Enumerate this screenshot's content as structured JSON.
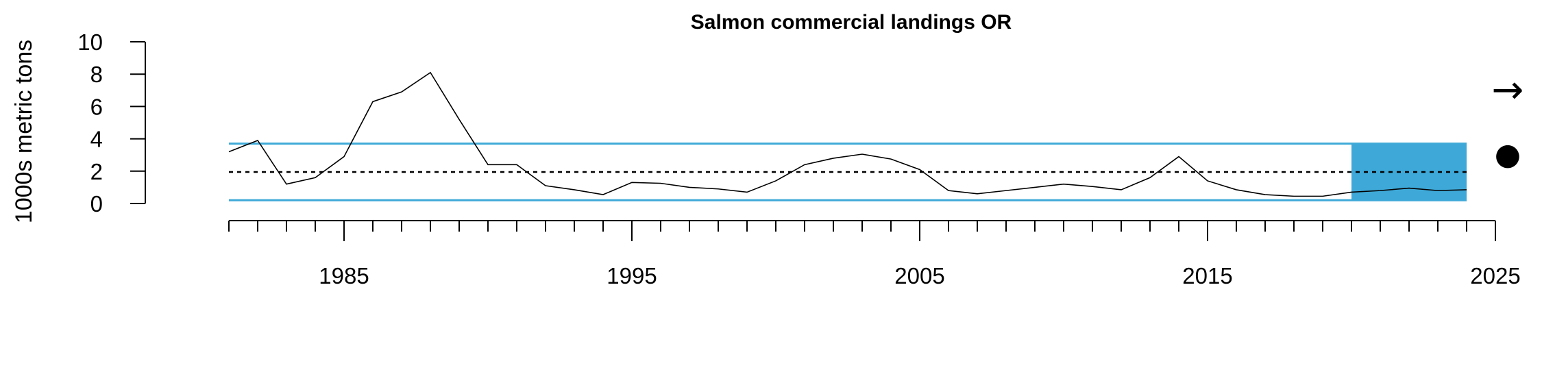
{
  "chart_data": {
    "type": "line",
    "title": "Salmon commercial landings OR",
    "ylabel": "1000s metric tons",
    "xlabel": "",
    "xlim": [
      1980,
      2025
    ],
    "ylim": [
      0,
      10
    ],
    "x_tick_labels": [
      "1985",
      "1995",
      "2005",
      "2015",
      "2025"
    ],
    "x_tick_values": [
      1985,
      1995,
      2005,
      2015,
      2025
    ],
    "y_tick_labels": [
      "0",
      "2",
      "4",
      "6",
      "8",
      "10"
    ],
    "y_tick_values": [
      0,
      2,
      4,
      6,
      8,
      10
    ],
    "series": [
      {
        "name": "landings",
        "x": [
          1981,
          1982,
          1983,
          1984,
          1985,
          1986,
          1987,
          1988,
          1989,
          1990,
          1991,
          1992,
          1993,
          1994,
          1995,
          1996,
          1997,
          1998,
          1999,
          2000,
          2001,
          2002,
          2003,
          2004,
          2005,
          2006,
          2007,
          2008,
          2009,
          2010,
          2011,
          2012,
          2013,
          2014,
          2015,
          2016,
          2017,
          2018,
          2019,
          2020,
          2021,
          2022,
          2023,
          2024
        ],
        "values": [
          3.2,
          3.9,
          1.2,
          1.6,
          2.9,
          6.3,
          6.9,
          8.1,
          5.2,
          2.4,
          2.4,
          1.1,
          0.85,
          0.55,
          1.3,
          1.25,
          1.0,
          0.9,
          0.7,
          1.4,
          2.4,
          2.8,
          3.05,
          2.75,
          2.1,
          0.8,
          0.6,
          0.8,
          1.0,
          1.2,
          1.05,
          0.85,
          1.6,
          2.9,
          1.4,
          0.85,
          0.55,
          0.45,
          0.45,
          0.7,
          0.8,
          0.95,
          0.8,
          0.85
        ]
      }
    ],
    "mean": 1.95,
    "upper_sd": 3.7,
    "lower_sd": 0.2,
    "recent_window": [
      2020,
      2024
    ],
    "trend_symbol": "→",
    "status_symbol": "●",
    "colors": {
      "band": "#3ea9d8",
      "line": "#000000",
      "mean": "#000000"
    }
  }
}
